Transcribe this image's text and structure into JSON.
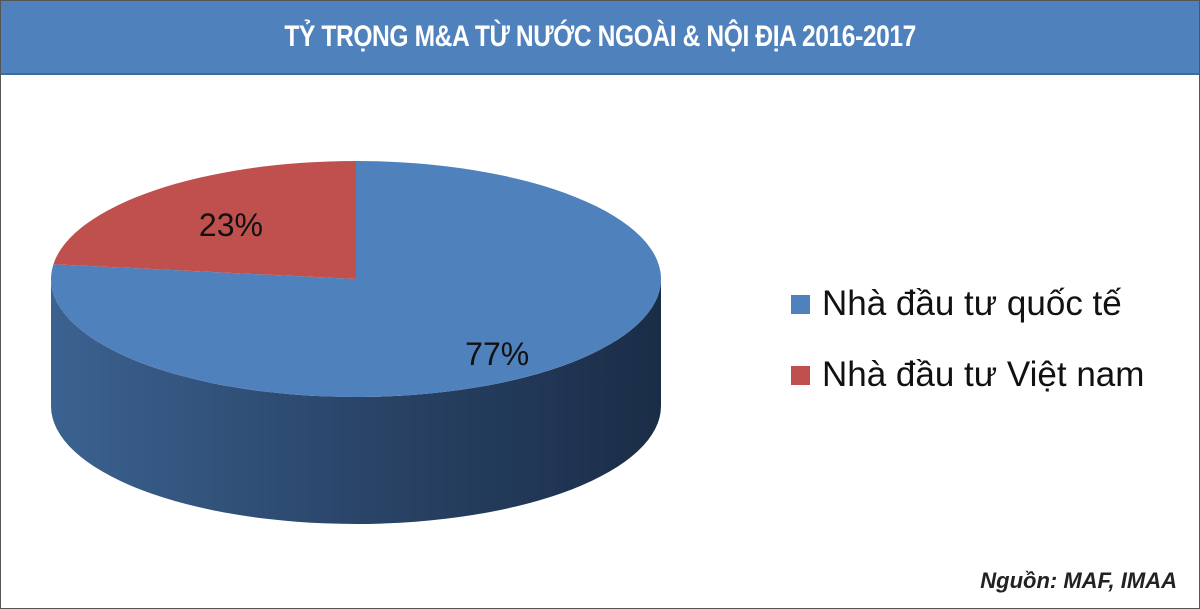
{
  "chart_data": {
    "type": "pie",
    "style": "3d",
    "title": "TỶ TRỌNG M&A TỪ NƯỚC NGOÀI & NỘI ĐỊA 2016-2017",
    "slices": [
      {
        "name": "Nhà đầu tư quốc tế",
        "value": 77,
        "label": "77%",
        "color": "#4f81bd"
      },
      {
        "name": "Nhà đầu tư Việt nam",
        "value": 23,
        "label": "23%",
        "color": "#c0504d"
      }
    ],
    "legend_position": "right",
    "source": "Nguồn: MAF, IMAA"
  }
}
